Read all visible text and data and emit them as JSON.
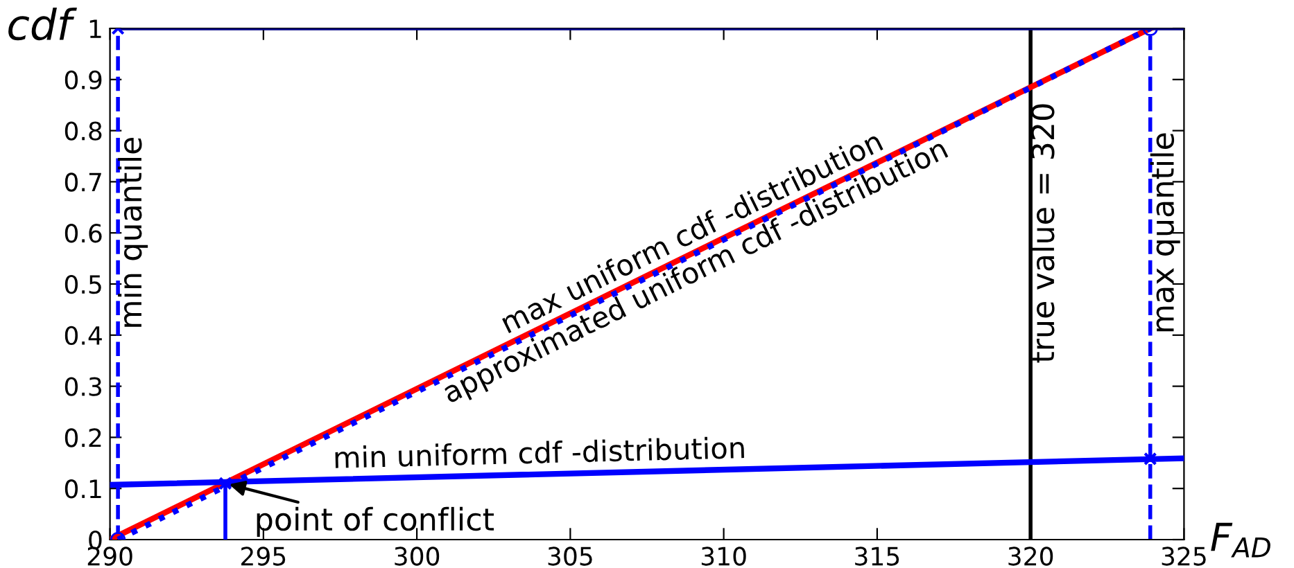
{
  "chart_data": {
    "type": "line",
    "xlabel": "F$_{AD}$",
    "ylabel": "cdf",
    "xlim": [
      290,
      325
    ],
    "xticks": [
      290,
      295,
      300,
      305,
      310,
      315,
      320,
      325
    ],
    "ylim": [
      0,
      1
    ],
    "yticks": [
      0,
      0.1,
      0.2,
      0.3,
      0.4,
      0.5,
      0.6,
      0.7,
      0.8,
      0.9,
      1
    ],
    "grid": false,
    "series": [
      {
        "name": "max uniform cdf -distribution",
        "color": "#ff0000",
        "x": [
          290,
          323.9
        ],
        "values": [
          0,
          1
        ],
        "line_style": "solid"
      },
      {
        "name": "approximated uniform cdf -distribution",
        "color": "#0000ff",
        "x": [
          290.26,
          323.9
        ],
        "values": [
          0,
          1
        ],
        "line_style": "dotted",
        "marker": "circle"
      },
      {
        "name": "min uniform cdf -distribution",
        "color": "#0000ff",
        "x": [
          290,
          325
        ],
        "values": [
          0.107,
          0.159
        ],
        "line_style": "solid"
      },
      {
        "color": "#000080",
        "x": [
          290.26,
          325
        ],
        "values": [
          1,
          1
        ],
        "line_style": "solid"
      },
      {
        "color": "#0000ff",
        "x": [
          293.76,
          293.76
        ],
        "values": [
          0,
          0.11
        ],
        "line_style": "solid"
      },
      {
        "type": "scatter",
        "color": "#0000ff",
        "x": [
          293.76,
          290.26,
          323.9
        ],
        "values": [
          0.11,
          1,
          0.158
        ],
        "marker": "cross"
      }
    ],
    "ref_lines": [
      {
        "axis": "x",
        "value": 290.26,
        "label": "min quantile",
        "color": "#0000ff",
        "line_style": "dashed"
      },
      {
        "axis": "x",
        "value": 320,
        "label": "true value = 320",
        "color": "#000000",
        "line_style": "solid"
      },
      {
        "axis": "x",
        "value": 323.9,
        "label": "max quantile",
        "color": "#0000ff",
        "line_style": "dashed"
      }
    ],
    "annotations": [
      {
        "text": "point of conflict",
        "x": 293.76,
        "y": 0.11
      }
    ]
  }
}
